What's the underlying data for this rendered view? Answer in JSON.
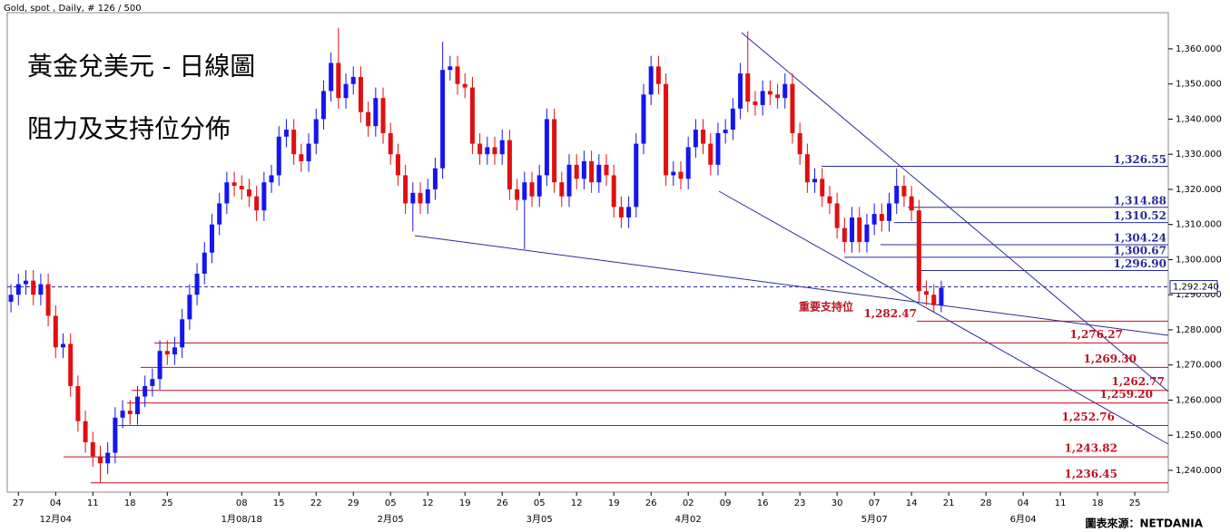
{
  "chart_data": {
    "type": "candlestick",
    "header": "Gold, spot , Daily, # 126 / 500",
    "title": "黃金兌美元 - 日線圖",
    "subtitle": "阻力及支持位分佈",
    "source": "圖表來源：NETDANIA",
    "support_note": "重要支持位",
    "up_color": "#1515ee",
    "down_color": "#e01010",
    "categories": [
      null,
      "27",
      null,
      null,
      null,
      null,
      "04",
      null,
      null,
      null,
      null,
      "11",
      null,
      null,
      null,
      null,
      "18",
      null,
      null,
      null,
      null,
      "25",
      null,
      null,
      null,
      null,
      null,
      null,
      null,
      null,
      null,
      "08",
      null,
      null,
      null,
      null,
      "15",
      null,
      null,
      null,
      null,
      "22",
      null,
      null,
      null,
      null,
      "29",
      null,
      null,
      null,
      null,
      "05",
      null,
      null,
      null,
      null,
      "12",
      null,
      null,
      null,
      null,
      "19",
      null,
      null,
      null,
      null,
      "26",
      null,
      null,
      null,
      null,
      "05",
      null,
      null,
      null,
      null,
      "12",
      null,
      null,
      null,
      null,
      "19",
      null,
      null,
      null,
      null,
      "26",
      null,
      null,
      null,
      null,
      "02",
      null,
      null,
      null,
      null,
      "09",
      null,
      null,
      null,
      null,
      "16",
      null,
      null,
      null,
      null,
      "23",
      null,
      null,
      null,
      null,
      "30",
      null,
      null,
      null,
      null,
      "07",
      null,
      null,
      null,
      null,
      "14",
      null,
      null,
      null,
      null,
      "21",
      null,
      null,
      null,
      null,
      "28",
      null,
      null,
      null,
      null,
      "04",
      null,
      null,
      null,
      null,
      "11",
      null,
      null,
      null,
      null,
      "18",
      null,
      null,
      null,
      null,
      "25",
      null,
      null,
      null,
      null
    ],
    "month_categories": [
      null,
      null,
      null,
      null,
      null,
      null,
      "12月04",
      null,
      null,
      null,
      null,
      null,
      null,
      null,
      null,
      null,
      null,
      null,
      null,
      null,
      null,
      null,
      null,
      null,
      null,
      null,
      null,
      null,
      null,
      null,
      null,
      "1月08/18",
      null,
      null,
      null,
      null,
      null,
      null,
      null,
      null,
      null,
      null,
      null,
      null,
      null,
      null,
      null,
      null,
      null,
      null,
      null,
      "2月05",
      null,
      null,
      null,
      null,
      null,
      null,
      null,
      null,
      null,
      null,
      null,
      null,
      null,
      null,
      null,
      null,
      null,
      null,
      null,
      "3月05",
      null,
      null,
      null,
      null,
      null,
      null,
      null,
      null,
      null,
      null,
      null,
      null,
      null,
      null,
      null,
      null,
      null,
      null,
      null,
      "4月02",
      null,
      null,
      null,
      null,
      null,
      null,
      null,
      null,
      null,
      null,
      null,
      null,
      null,
      null,
      null,
      null,
      null,
      null,
      null,
      null,
      null,
      null,
      null,
      null,
      "5月07",
      null,
      null,
      null,
      null,
      null,
      null,
      null,
      null,
      null,
      null,
      null,
      null,
      null,
      null,
      null,
      null,
      null,
      null,
      null,
      "6月04",
      null,
      null,
      null,
      null,
      null,
      null,
      null,
      null,
      null,
      null,
      null,
      null,
      null,
      null,
      null,
      null,
      null,
      null,
      null
    ],
    "open": [
      1288,
      1290,
      1293,
      1294,
      1290,
      1293,
      1284,
      1275,
      1276,
      1264,
      1254,
      1248,
      1244,
      1242,
      1245,
      1255,
      1257,
      1256,
      1261,
      1264,
      1266,
      1274,
      1273,
      1275,
      1283,
      1290,
      1296,
      1302,
      1310,
      1316,
      1322,
      1321,
      1320,
      1318,
      1314,
      1322,
      1324,
      1335,
      1337,
      1330,
      1328,
      1333,
      1340,
      1348,
      1356,
      1346,
      1350,
      1352,
      1342,
      1338,
      1346,
      1336,
      1330,
      1324,
      1316,
      1319,
      1316,
      1320,
      1326,
      1354,
      1355,
      1350,
      1349,
      1333,
      1330,
      1332,
      1330,
      1334,
      1320,
      1317,
      1322,
      1318,
      1324,
      1340,
      1322,
      1318,
      1327,
      1323,
      1328,
      1322,
      1327,
      1324,
      1315,
      1312,
      1315,
      1333,
      1347,
      1355,
      1350,
      1324,
      1325,
      1323,
      1332,
      1337,
      1333,
      1327,
      1336,
      1337,
      1343,
      1353,
      1345,
      1344,
      1348,
      1347,
      1346,
      1350,
      1336,
      1330,
      1322,
      1323,
      1318,
      1316,
      1309,
      1305,
      1312,
      1305,
      1310,
      1313,
      1311,
      1316,
      1321,
      1318,
      1314,
      1291,
      1290,
      1287,
      null,
      null,
      null,
      null,
      null,
      null,
      null,
      null,
      null,
      null,
      null,
      null,
      null,
      null,
      null,
      null,
      null,
      null,
      null,
      null,
      null,
      null,
      null,
      null,
      null,
      null,
      null,
      null,
      null,
      null
    ],
    "high": [
      1293,
      1296,
      1297,
      1297,
      1296,
      1296,
      1287,
      1279,
      1279,
      1267,
      1257,
      1251,
      1247,
      1248,
      1258,
      1260,
      1260,
      1264,
      1267,
      1269,
      1277,
      1277,
      1278,
      1286,
      1293,
      1299,
      1305,
      1313,
      1319,
      1325,
      1325,
      1324,
      1323,
      1321,
      1325,
      1327,
      1338,
      1340,
      1340,
      1333,
      1336,
      1343,
      1351,
      1359,
      1366,
      1353,
      1355,
      1355,
      1345,
      1349,
      1349,
      1339,
      1333,
      1327,
      1322,
      1322,
      1323,
      1329,
      1362,
      1358,
      1358,
      1353,
      1352,
      1336,
      1335,
      1335,
      1337,
      1337,
      1323,
      1325,
      1325,
      1327,
      1343,
      1343,
      1325,
      1330,
      1330,
      1331,
      1331,
      1330,
      1330,
      1327,
      1318,
      1318,
      1336,
      1350,
      1358,
      1358,
      1353,
      1328,
      1328,
      1335,
      1340,
      1340,
      1336,
      1339,
      1340,
      1346,
      1356,
      1365,
      1348,
      1351,
      1351,
      1350,
      1353,
      1353,
      1339,
      1333,
      1326,
      1326,
      1321,
      1319,
      1312,
      1315,
      1315,
      1313,
      1316,
      1316,
      1319,
      1326,
      1324,
      1321,
      1317,
      1294,
      1293,
      1294,
      null,
      null,
      null,
      null,
      null,
      null,
      null,
      null,
      null,
      null,
      null,
      null,
      null,
      null,
      null,
      null,
      null,
      null,
      null,
      null,
      null,
      null,
      null,
      null,
      null,
      null,
      null,
      null,
      null,
      null
    ],
    "low": [
      1285,
      1287,
      1290,
      1287,
      1287,
      1281,
      1272,
      1272,
      1261,
      1251,
      1245,
      1241,
      1236.45,
      1239,
      1242,
      1252,
      1253,
      1253,
      1258,
      1261,
      1263,
      1270,
      1270,
      1272,
      1280,
      1287,
      1293,
      1299,
      1307,
      1313,
      1318,
      1317,
      1315,
      1311,
      1311,
      1319,
      1321,
      1332,
      1327,
      1325,
      1325,
      1330,
      1337,
      1345,
      1343,
      1343,
      1347,
      1339,
      1335,
      1335,
      1333,
      1327,
      1321,
      1313,
      1308,
      1313,
      1313,
      1317,
      1323,
      1351,
      1347,
      1346,
      1330,
      1327,
      1327,
      1327,
      1327,
      1317,
      1314,
      1303,
      1315,
      1315,
      1321,
      1319,
      1315,
      1315,
      1320,
      1320,
      1319,
      1319,
      1321,
      1312,
      1309,
      1309,
      1312,
      1330,
      1344,
      1347,
      1321,
      1321,
      1320,
      1320,
      1329,
      1330,
      1324,
      1324,
      1333,
      1334,
      1340,
      1342,
      1341,
      1341,
      1344,
      1343,
      1343,
      1333,
      1327,
      1319,
      1319,
      1315,
      1313,
      1306,
      1302,
      1302,
      1302,
      1302,
      1307,
      1308,
      1308,
      1313,
      1315,
      1311,
      1288,
      1287,
      1285,
      1285,
      null,
      null,
      null,
      null,
      null,
      null,
      null,
      null,
      null,
      null,
      null,
      null,
      null,
      null,
      null,
      null,
      null,
      null,
      null,
      null,
      null,
      null,
      null,
      null,
      null,
      null,
      null,
      null,
      null,
      null
    ],
    "close": [
      1290,
      1293,
      1294,
      1290,
      1293,
      1284,
      1275,
      1276,
      1264,
      1254,
      1248,
      1244,
      1242,
      1245,
      1255,
      1257,
      1256,
      1261,
      1264,
      1266,
      1274,
      1273,
      1275,
      1283,
      1290,
      1296,
      1302,
      1310,
      1316,
      1322,
      1321,
      1320,
      1318,
      1314,
      1322,
      1324,
      1335,
      1337,
      1330,
      1328,
      1333,
      1340,
      1348,
      1356,
      1346,
      1350,
      1352,
      1342,
      1338,
      1346,
      1336,
      1330,
      1324,
      1316,
      1319,
      1316,
      1320,
      1326,
      1354,
      1355,
      1350,
      1349,
      1333,
      1330,
      1332,
      1330,
      1334,
      1320,
      1317,
      1322,
      1318,
      1324,
      1340,
      1322,
      1318,
      1327,
      1323,
      1328,
      1322,
      1327,
      1324,
      1315,
      1312,
      1315,
      1333,
      1347,
      1355,
      1350,
      1324,
      1325,
      1323,
      1332,
      1337,
      1333,
      1327,
      1336,
      1337,
      1343,
      1353,
      1345,
      1344,
      1348,
      1347,
      1346,
      1350,
      1336,
      1330,
      1322,
      1323,
      1318,
      1316,
      1309,
      1305,
      1312,
      1305,
      1310,
      1313,
      1311,
      1316,
      1321,
      1318,
      1314,
      1291,
      1290,
      1287,
      1292,
      null,
      null,
      null,
      null,
      null,
      null,
      null,
      null,
      null,
      null,
      null,
      null,
      null,
      null,
      null,
      null,
      null,
      null,
      null,
      null,
      null,
      null,
      null,
      null,
      null,
      null,
      null,
      null,
      null,
      null
    ],
    "resistance": {
      "color": "#2a2a9a",
      "values": [
        1326.55,
        1314.88,
        1310.52,
        1304.24,
        1300.67,
        1296.9
      ],
      "value_labels": [
        "1,326.55",
        "1,314.88",
        "1,310.52",
        "1,304.24",
        "1,300.67",
        "1,296.90"
      ]
    },
    "support": {
      "color": "#c01020",
      "values": [
        1282.47,
        1276.27,
        1269.3,
        1262.77,
        1259.2,
        1252.76,
        1243.82,
        1236.45
      ],
      "value_labels": [
        "1,282.47",
        "1,276.27",
        "1,269.30",
        "1,262.77",
        "1,259.20",
        "1,252.76",
        "1,243.82",
        "1,236.45"
      ]
    },
    "last_price": {
      "value": 1292.24,
      "label": "1,292.240"
    },
    "ylim": [
      1233.8,
      1370.3
    ],
    "yticks": [
      {
        "value": 1240,
        "label": "1,240.000"
      },
      {
        "value": 1250,
        "label": "1,250.000"
      },
      {
        "value": 1260,
        "label": "1,260.000"
      },
      {
        "value": 1270,
        "label": "1,270.000"
      },
      {
        "value": 1280,
        "label": "1,280.000"
      },
      {
        "value": 1290,
        "label": "1,290.000"
      },
      {
        "value": 1300,
        "label": "1,300.000"
      },
      {
        "value": 1310,
        "label": "1,310.000"
      },
      {
        "value": 1320,
        "label": "1,320.000"
      },
      {
        "value": 1330,
        "label": "1,330.000"
      },
      {
        "value": 1340,
        "label": "1,340.000"
      },
      {
        "value": 1350,
        "label": "1,350.000"
      },
      {
        "value": 1360,
        "label": "1,360.000"
      }
    ]
  }
}
